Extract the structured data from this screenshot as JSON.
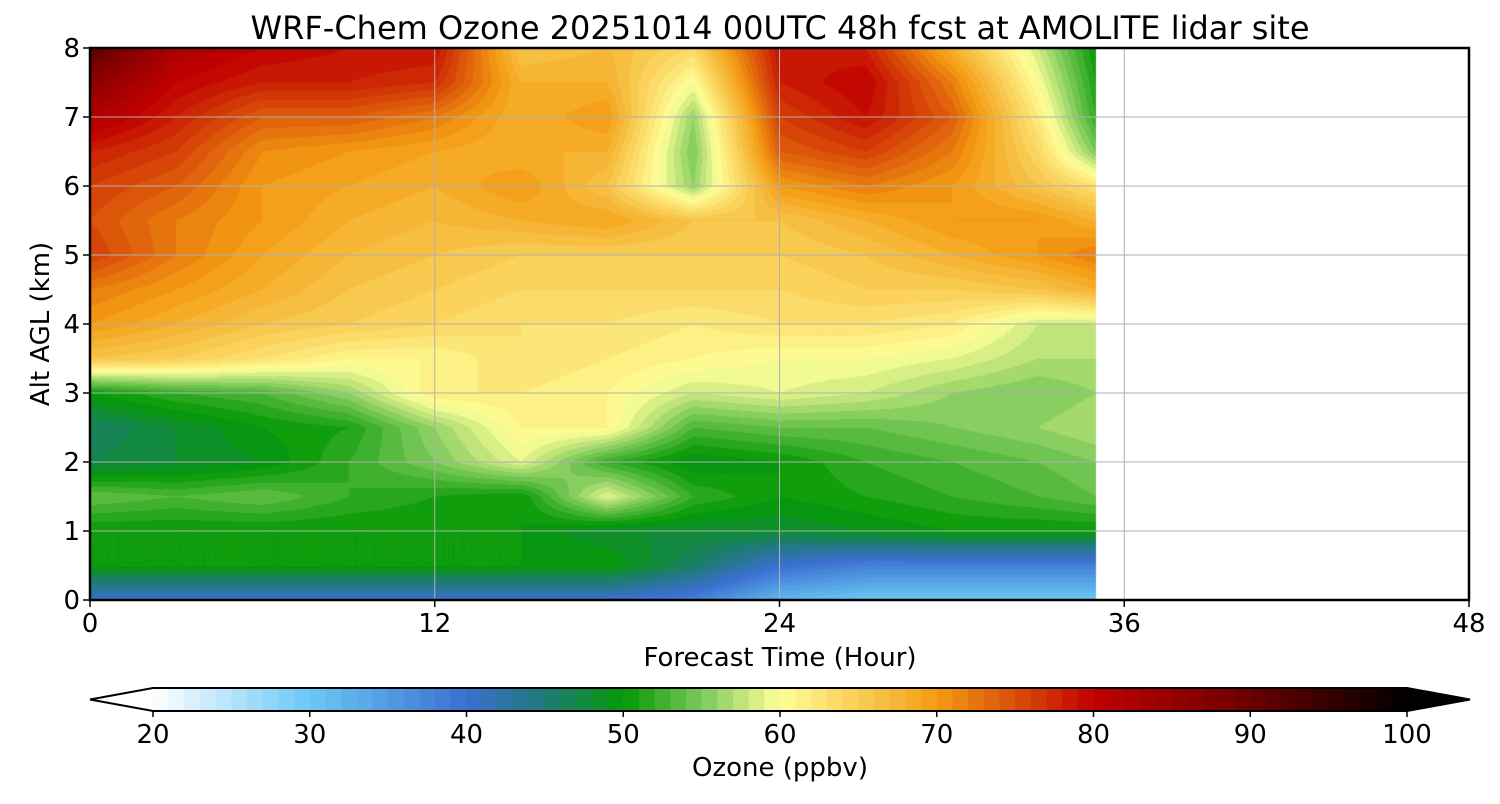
{
  "chart_data": {
    "type": "heatmap",
    "title": "WRF-Chem Ozone  20251014 00UTC 48h fcst at AMOLITE lidar site",
    "xlabel": "Forecast Time (Hour)",
    "ylabel": "Alt AGL (km)",
    "xlim": [
      0,
      48
    ],
    "ylim": [
      0,
      8
    ],
    "x_ticks": [
      "0",
      "12",
      "24",
      "36",
      "48"
    ],
    "y_ticks": [
      "0",
      "1",
      "2",
      "3",
      "4",
      "5",
      "6",
      "7",
      "8"
    ],
    "grid": true,
    "x": [
      0,
      3,
      6,
      9,
      12,
      15,
      18,
      21,
      24,
      27,
      30,
      33,
      35
    ],
    "y": [
      0,
      0.5,
      1,
      1.5,
      2,
      2.5,
      3,
      3.5,
      4,
      4.5,
      5,
      5.5,
      6,
      6.5,
      7,
      7.5,
      8
    ],
    "z_units": "ppbv",
    "z": [
      [
        40,
        40,
        40,
        40,
        40,
        40,
        40,
        38,
        32,
        30,
        30,
        30,
        30
      ],
      [
        50,
        50,
        50,
        50,
        50,
        50,
        50,
        46,
        40,
        38,
        38,
        38,
        38
      ],
      [
        50,
        50,
        50,
        50,
        50,
        50,
        48,
        48,
        48,
        49,
        50,
        50,
        50
      ],
      [
        54,
        53,
        54,
        52,
        51,
        50,
        59,
        52,
        50,
        51,
        52,
        53,
        54
      ],
      [
        47,
        48,
        49,
        52,
        55,
        59,
        52,
        49,
        50,
        52,
        53,
        54,
        55
      ],
      [
        46,
        48,
        50,
        51,
        56,
        61,
        61,
        53,
        54,
        54,
        55,
        56,
        57
      ],
      [
        50,
        52,
        53,
        56,
        62,
        62,
        61,
        58,
        59,
        58,
        56,
        55,
        56
      ],
      [
        66,
        65,
        63,
        61,
        61,
        63,
        62,
        61,
        60,
        60,
        59,
        57,
        57
      ],
      [
        70,
        68,
        66,
        65,
        64,
        63,
        63,
        62,
        63,
        63,
        62,
        58,
        58
      ],
      [
        72,
        70,
        68,
        66,
        65,
        64,
        64,
        64,
        64,
        65,
        65,
        66,
        68
      ],
      [
        76,
        72,
        69,
        67,
        66,
        65,
        65,
        65,
        65,
        66,
        68,
        70,
        72
      ],
      [
        75,
        72,
        70,
        68,
        67,
        68,
        69,
        66,
        66,
        68,
        70,
        70,
        68
      ],
      [
        76,
        74,
        70,
        69,
        68,
        70,
        66,
        56,
        70,
        72,
        70,
        66,
        63
      ],
      [
        78,
        76,
        71,
        70,
        69,
        68,
        68,
        55,
        74,
        76,
        72,
        64,
        55
      ],
      [
        82,
        78,
        74,
        74,
        72,
        68,
        70,
        56,
        76,
        79,
        74,
        62,
        52
      ],
      [
        86,
        80,
        78,
        78,
        77,
        68,
        68,
        60,
        78,
        80,
        72,
        60,
        51
      ],
      [
        92,
        82,
        80,
        79,
        79,
        66,
        67,
        64,
        79,
        78,
        68,
        58,
        50
      ]
    ],
    "colorbar": {
      "label": "Ozone  (ppbv)",
      "min": 20,
      "max": 100,
      "extend": "both",
      "ticks": [
        "20",
        "30",
        "40",
        "50",
        "60",
        "70",
        "80",
        "90",
        "100"
      ],
      "color_stops": [
        {
          "value": 20,
          "color": "#ffffff"
        },
        {
          "value": 30,
          "color": "#6ac8f5"
        },
        {
          "value": 40,
          "color": "#3b6fd0"
        },
        {
          "value": 45,
          "color": "#1f7a7a"
        },
        {
          "value": 50,
          "color": "#049904"
        },
        {
          "value": 55,
          "color": "#7cc95a"
        },
        {
          "value": 60,
          "color": "#ffff99"
        },
        {
          "value": 70,
          "color": "#f39c12"
        },
        {
          "value": 80,
          "color": "#c00000"
        },
        {
          "value": 90,
          "color": "#6b0000"
        },
        {
          "value": 100,
          "color": "#000000"
        }
      ],
      "under_color": "#ffffff",
      "over_color": "#000000"
    }
  }
}
